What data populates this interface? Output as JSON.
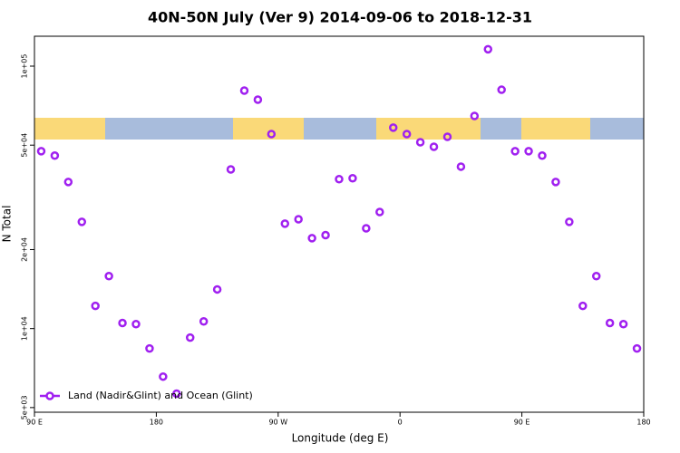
{
  "chart_data": {
    "type": "scatter",
    "title": "40N-50N July (Ver 9)   2014-09-06 to 2018-12-31",
    "x_label": "Longitude (deg E)",
    "y_label": "N Total",
    "xlim": [
      90,
      540
    ],
    "xticks": [
      {
        "value": 90,
        "label": "90 E"
      },
      180,
      {
        "value": 270,
        "label": "90 W"
      },
      {
        "value": 360,
        "label": "0"
      },
      {
        "value": 450,
        "label": "90 E"
      },
      {
        "value": 540,
        "label": "180"
      }
    ],
    "ylim": [
      4800,
      130000
    ],
    "log_y": true,
    "yticks": [
      {
        "value": 5000,
        "label": "5e+03"
      },
      {
        "value": 10000,
        "label": "1e+04"
      },
      {
        "value": 20000,
        "label": "2e+04"
      },
      {
        "value": 50000,
        "label": "5e+04"
      },
      {
        "value": 100000,
        "label": "1e+05"
      }
    ],
    "legend": "bottom-left",
    "series": [
      {
        "name": "Land (Nadir&Glint) and Ocean (Glint)",
        "color": "#a020f0",
        "x": [
          95,
          105,
          115,
          125,
          135,
          145,
          155,
          165,
          175,
          185,
          195,
          205,
          215,
          225,
          235,
          245,
          255,
          265,
          275,
          285,
          295,
          305,
          315,
          325,
          335,
          345,
          355,
          365,
          375,
          385,
          395,
          405,
          415,
          425,
          435,
          445,
          455,
          465,
          475,
          485,
          495,
          505,
          515,
          525,
          535
        ],
        "values": [
          47400,
          45600,
          36200,
          25500,
          12200,
          15850,
          10500,
          10400,
          8400,
          6560,
          5650,
          9240,
          10650,
          14100,
          40400,
          80700,
          74500,
          55100,
          25100,
          26100,
          22100,
          22700,
          37100,
          37400,
          24100,
          27800,
          58300,
          55100,
          51300,
          49300,
          53800,
          41400,
          64600,
          116000,
          81300,
          47400,
          47400,
          45600,
          36200,
          25500,
          12200,
          15850,
          10500,
          10400,
          8400
        ]
      }
    ]
  }
}
